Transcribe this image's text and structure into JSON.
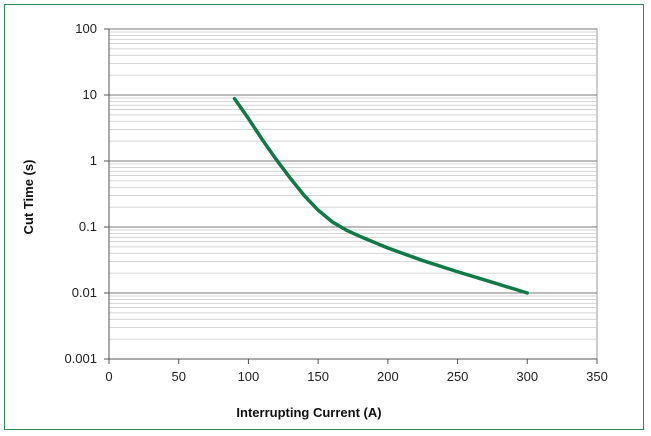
{
  "chart_data": {
    "type": "line",
    "title": "",
    "xlabel": "Interrupting Current (A)",
    "ylabel": "Cut Time (s)",
    "xlim": [
      0,
      350
    ],
    "ylim": [
      0.001,
      100
    ],
    "yscale": "log",
    "x_ticks": [
      "0",
      "50",
      "100",
      "150",
      "200",
      "250",
      "300",
      "350"
    ],
    "y_ticks": [
      "0.001",
      "0.01",
      "0.1",
      "1",
      "10",
      "100"
    ],
    "grid": true,
    "legend": "none",
    "series": [
      {
        "color": "#0e7a45",
        "x": [
          90,
          100,
          110,
          120,
          130,
          140,
          150,
          160,
          170,
          180,
          200,
          225,
          250,
          275,
          300
        ],
        "y": [
          8.8,
          4.4,
          2.1,
          1.05,
          0.55,
          0.3,
          0.18,
          0.12,
          0.09,
          0.072,
          0.048,
          0.031,
          0.021,
          0.0145,
          0.01
        ]
      }
    ]
  }
}
